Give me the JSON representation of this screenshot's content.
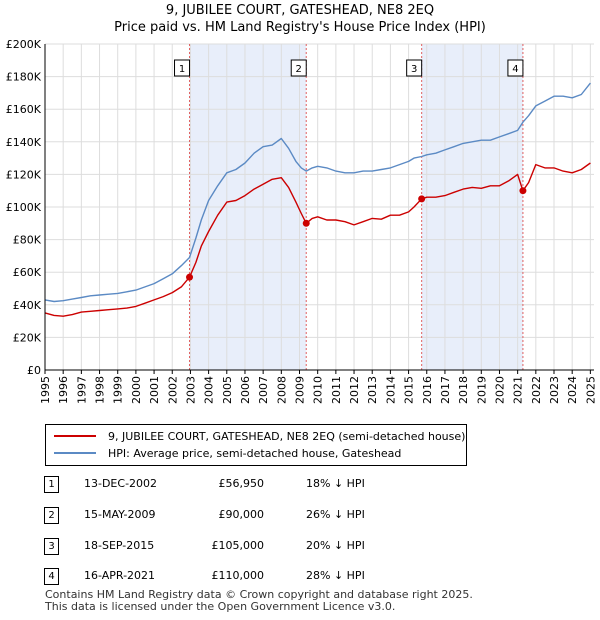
{
  "title_line1": "9, JUBILEE COURT, GATESHEAD, NE8 2EQ",
  "title_line2": "Price paid vs. HM Land Registry's House Price Index (HPI)",
  "colors": {
    "price": "#cc0000",
    "hpi": "#5b8ac4",
    "shade": "#e8eefa",
    "vline": "#e06060"
  },
  "chart_data": {
    "type": "line",
    "ylim": [
      0,
      200000
    ],
    "xlim": [
      1995,
      2025.2
    ],
    "y_ticks": [
      {
        "v": 0,
        "label": "£0"
      },
      {
        "v": 20000,
        "label": "£20K"
      },
      {
        "v": 40000,
        "label": "£40K"
      },
      {
        "v": 60000,
        "label": "£60K"
      },
      {
        "v": 80000,
        "label": "£80K"
      },
      {
        "v": 100000,
        "label": "£100K"
      },
      {
        "v": 120000,
        "label": "£120K"
      },
      {
        "v": 140000,
        "label": "£140K"
      },
      {
        "v": 160000,
        "label": "£160K"
      },
      {
        "v": 180000,
        "label": "£180K"
      },
      {
        "v": 200000,
        "label": "£200K"
      }
    ],
    "x_ticks": [
      "1995",
      "1996",
      "1997",
      "1998",
      "1999",
      "2000",
      "2001",
      "2002",
      "2003",
      "2004",
      "2005",
      "2006",
      "2007",
      "2008",
      "2009",
      "2010",
      "2011",
      "2012",
      "2013",
      "2014",
      "2015",
      "2016",
      "2017",
      "2018",
      "2019",
      "2020",
      "2021",
      "2022",
      "2023",
      "2024",
      "2025"
    ],
    "shaded_ranges": [
      [
        2002.95,
        2009.37
      ],
      [
        2015.72,
        2021.29
      ]
    ],
    "series": [
      {
        "name": "9, JUBILEE COURT, GATESHEAD, NE8 2EQ (semi-detached house)",
        "x": [
          1995,
          1995.5,
          1996,
          1996.5,
          1997,
          1997.5,
          1998,
          1998.5,
          1999,
          1999.5,
          2000,
          2000.5,
          2001,
          2001.5,
          2002,
          2002.5,
          2002.95,
          2003.3,
          2003.6,
          2004,
          2004.5,
          2005,
          2005.5,
          2006,
          2006.5,
          2007,
          2007.5,
          2008,
          2008.4,
          2008.8,
          2009.1,
          2009.37,
          2009.7,
          2010,
          2010.5,
          2011,
          2011.5,
          2012,
          2012.5,
          2013,
          2013.5,
          2014,
          2014.5,
          2015,
          2015.3,
          2015.72,
          2016,
          2016.5,
          2017,
          2017.5,
          2018,
          2018.5,
          2019,
          2019.5,
          2020,
          2020.5,
          2021,
          2021.29,
          2021.6,
          2022,
          2022.5,
          2023,
          2023.5,
          2024,
          2024.5,
          2025
        ],
        "values": [
          35000,
          33500,
          33000,
          34000,
          35500,
          36000,
          36500,
          37000,
          37500,
          38000,
          39000,
          41000,
          43000,
          45000,
          47500,
          51000,
          56950,
          66000,
          76000,
          85000,
          95000,
          103000,
          104000,
          107000,
          111000,
          114000,
          117000,
          118000,
          112000,
          103000,
          96000,
          90000,
          93000,
          94000,
          92000,
          92000,
          91000,
          89000,
          91000,
          93000,
          92500,
          95000,
          95000,
          97000,
          100000,
          105000,
          106000,
          106000,
          107000,
          109000,
          111000,
          112000,
          111500,
          113000,
          113000,
          116000,
          120000,
          110000,
          115000,
          126000,
          124000,
          124000,
          122000,
          121000,
          123000,
          127000
        ]
      },
      {
        "name": "HPI: Average price, semi-detached house, Gateshead",
        "x": [
          1995,
          1995.5,
          1996,
          1996.5,
          1997,
          1997.5,
          1998,
          1998.5,
          1999,
          1999.5,
          2000,
          2000.5,
          2001,
          2001.5,
          2002,
          2002.5,
          2002.95,
          2003.3,
          2003.6,
          2004,
          2004.5,
          2005,
          2005.5,
          2006,
          2006.5,
          2007,
          2007.5,
          2008,
          2008.4,
          2008.8,
          2009.1,
          2009.37,
          2009.7,
          2010,
          2010.5,
          2011,
          2011.5,
          2012,
          2012.5,
          2013,
          2013.5,
          2014,
          2014.5,
          2015,
          2015.3,
          2015.72,
          2016,
          2016.5,
          2017,
          2017.5,
          2018,
          2018.5,
          2019,
          2019.5,
          2020,
          2020.5,
          2021,
          2021.29,
          2021.6,
          2022,
          2022.5,
          2023,
          2023.5,
          2024,
          2024.5,
          2025
        ],
        "values": [
          43000,
          42000,
          42500,
          43500,
          44500,
          45500,
          46000,
          46500,
          47000,
          48000,
          49000,
          51000,
          53000,
          56000,
          59000,
          64000,
          69000,
          81000,
          92000,
          104000,
          113000,
          121000,
          123000,
          127000,
          133000,
          137000,
          138000,
          142000,
          136000,
          128000,
          124000,
          122000,
          124000,
          125000,
          124000,
          122000,
          121000,
          121000,
          122000,
          122000,
          123000,
          124000,
          126000,
          128000,
          130000,
          131000,
          132000,
          133000,
          135000,
          137000,
          139000,
          140000,
          141000,
          141000,
          143000,
          145000,
          147000,
          152000,
          156000,
          162000,
          165000,
          168000,
          168000,
          167000,
          169000,
          176000
        ]
      }
    ],
    "transactions": [
      {
        "num": "1",
        "x": 2002.95,
        "price": 56950
      },
      {
        "num": "2",
        "x": 2009.37,
        "price": 90000
      },
      {
        "num": "3",
        "x": 2015.72,
        "price": 105000
      },
      {
        "num": "4",
        "x": 2021.29,
        "price": 110000
      }
    ]
  },
  "legend": {
    "price_label": "9, JUBILEE COURT, GATESHEAD, NE8 2EQ (semi-detached house)",
    "hpi_label": "HPI: Average price, semi-detached house, Gateshead"
  },
  "table": [
    {
      "num": "1",
      "date": "13-DEC-2002",
      "price": "£56,950",
      "hpi": "18% ↓ HPI"
    },
    {
      "num": "2",
      "date": "15-MAY-2009",
      "price": "£90,000",
      "hpi": "26% ↓ HPI"
    },
    {
      "num": "3",
      "date": "18-SEP-2015",
      "price": "£105,000",
      "hpi": "20% ↓ HPI"
    },
    {
      "num": "4",
      "date": "16-APR-2021",
      "price": "£110,000",
      "hpi": "28% ↓ HPI"
    }
  ],
  "footer_line1": "Contains HM Land Registry data © Crown copyright and database right 2025.",
  "footer_line2": "This data is licensed under the Open Government Licence v3.0."
}
